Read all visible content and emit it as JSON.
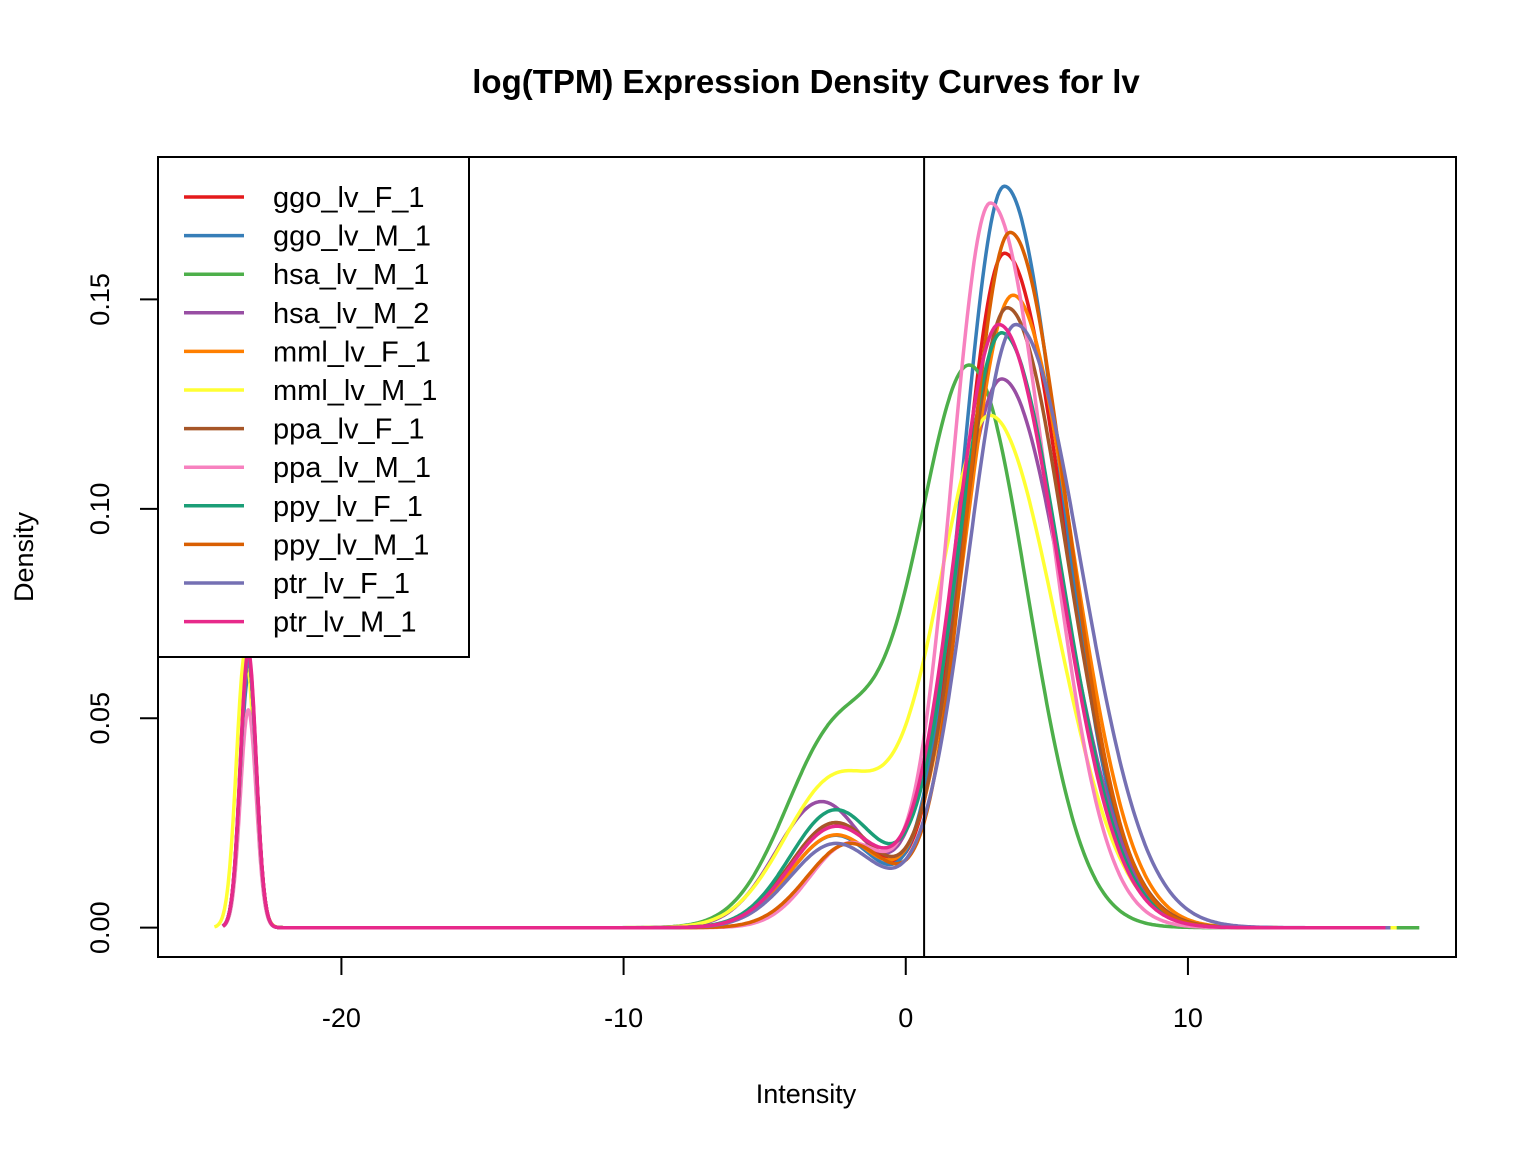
{
  "chart_data": {
    "type": "line",
    "title": "log(TPM) Expression Density Curves for lv",
    "xlabel": "Intensity",
    "ylabel": "Density",
    "xlim": [
      -26.5,
      19.5
    ],
    "ylim": [
      -0.007,
      0.184
    ],
    "x_ticks": [
      -20,
      -10,
      0,
      10
    ],
    "y_ticks": [
      0.0,
      0.05,
      0.1,
      0.15
    ],
    "x_tick_labels": [
      "-20",
      "-10",
      "0",
      "10"
    ],
    "y_tick_labels": [
      "0.00",
      "0.05",
      "0.10",
      "0.15"
    ],
    "vline_x": 0.65,
    "legend_position": "top-left",
    "grid": false,
    "series": [
      {
        "name": "ggo_lv_F_1",
        "color": "#E41A1C",
        "spike": {
          "x": -23.3,
          "y": 0.065,
          "w": 0.28,
          "x0": -24.2,
          "x1": -22.3
        },
        "peak": {
          "x": 3.5,
          "y": 0.161,
          "sl": 1.5,
          "sr": 2.1
        },
        "shoulder": {
          "x": -2.5,
          "y": 0.025,
          "s": 1.6
        },
        "xmax": 17.0
      },
      {
        "name": "ggo_lv_M_1",
        "color": "#377EB8",
        "spike": {
          "x": -23.3,
          "y": 0.06,
          "w": 0.28,
          "x0": -24.2,
          "x1": -22.3
        },
        "peak": {
          "x": 3.5,
          "y": 0.177,
          "sl": 1.5,
          "sr": 2.0
        },
        "shoulder": {
          "x": -2.5,
          "y": 0.022,
          "s": 1.6
        },
        "xmax": 17.0
      },
      {
        "name": "hsa_lv_M_1",
        "color": "#4DAF4A",
        "spike": {
          "x": -23.3,
          "y": 0.064,
          "w": 0.28,
          "x0": -24.2,
          "x1": -22.3
        },
        "peak": {
          "x": 2.3,
          "y": 0.133,
          "sl": 1.9,
          "sr": 2.0
        },
        "shoulder": {
          "x": -2.5,
          "y": 0.045,
          "s": 1.8
        },
        "xmax": 18.2
      },
      {
        "name": "hsa_lv_M_2",
        "color": "#984EA3",
        "spike": {
          "x": -23.3,
          "y": 0.064,
          "w": 0.28,
          "x0": -24.2,
          "x1": -22.3
        },
        "peak": {
          "x": 3.4,
          "y": 0.131,
          "sl": 1.7,
          "sr": 2.2
        },
        "shoulder": {
          "x": -3.0,
          "y": 0.03,
          "s": 1.6
        },
        "xmax": 17.2
      },
      {
        "name": "mml_lv_F_1",
        "color": "#FF7F00",
        "spike": {
          "x": -23.3,
          "y": 0.064,
          "w": 0.28,
          "x0": -24.2,
          "x1": -22.3
        },
        "peak": {
          "x": 3.8,
          "y": 0.151,
          "sl": 1.7,
          "sr": 2.1
        },
        "shoulder": {
          "x": -2.5,
          "y": 0.022,
          "s": 1.6
        },
        "xmax": 17.2
      },
      {
        "name": "mml_lv_M_1",
        "color": "#FFFF33",
        "spike": {
          "x": -23.4,
          "y": 0.066,
          "w": 0.32,
          "x0": -24.5,
          "x1": -22.2
        },
        "peak": {
          "x": 3.0,
          "y": 0.122,
          "sl": 1.9,
          "sr": 2.3
        },
        "shoulder": {
          "x": -2.5,
          "y": 0.035,
          "s": 1.8
        },
        "xmax": 17.4
      },
      {
        "name": "ppa_lv_F_1",
        "color": "#A65628",
        "spike": {
          "x": -23.3,
          "y": 0.064,
          "w": 0.28,
          "x0": -24.2,
          "x1": -22.3
        },
        "peak": {
          "x": 3.6,
          "y": 0.148,
          "sl": 1.6,
          "sr": 2.1
        },
        "shoulder": {
          "x": -2.5,
          "y": 0.025,
          "s": 1.6
        },
        "xmax": 17.0
      },
      {
        "name": "ppa_lv_M_1",
        "color": "#F781BF",
        "spike": {
          "x": -23.3,
          "y": 0.052,
          "w": 0.28,
          "x0": -24.2,
          "x1": -22.3
        },
        "peak": {
          "x": 3.0,
          "y": 0.173,
          "sl": 1.4,
          "sr": 2.0
        },
        "shoulder": {
          "x": -2.0,
          "y": 0.02,
          "s": 1.4
        },
        "xmax": 17.0
      },
      {
        "name": "ppy_lv_F_1",
        "color": "#1B9E77",
        "spike": {
          "x": -23.3,
          "y": 0.064,
          "w": 0.28,
          "x0": -24.2,
          "x1": -22.3
        },
        "peak": {
          "x": 3.4,
          "y": 0.142,
          "sl": 1.6,
          "sr": 2.1
        },
        "shoulder": {
          "x": -2.5,
          "y": 0.028,
          "s": 1.6
        },
        "xmax": 17.0
      },
      {
        "name": "ppy_lv_M_1",
        "color": "#D95F02",
        "spike": {
          "x": -23.3,
          "y": 0.064,
          "w": 0.28,
          "x0": -24.2,
          "x1": -22.3
        },
        "peak": {
          "x": 3.7,
          "y": 0.166,
          "sl": 1.5,
          "sr": 2.0
        },
        "shoulder": {
          "x": -2.0,
          "y": 0.02,
          "s": 1.5
        },
        "xmax": 17.0
      },
      {
        "name": "ptr_lv_F_1",
        "color": "#7570B3",
        "spike": {
          "x": -23.3,
          "y": 0.064,
          "w": 0.28,
          "x0": -24.2,
          "x1": -22.3
        },
        "peak": {
          "x": 3.9,
          "y": 0.144,
          "sl": 1.7,
          "sr": 2.3
        },
        "shoulder": {
          "x": -2.5,
          "y": 0.02,
          "s": 1.6
        },
        "xmax": 17.2
      },
      {
        "name": "ptr_lv_M_1",
        "color": "#E7298A",
        "spike": {
          "x": -23.3,
          "y": 0.066,
          "w": 0.28,
          "x0": -24.2,
          "x1": -22.3
        },
        "peak": {
          "x": 3.3,
          "y": 0.144,
          "sl": 1.6,
          "sr": 2.1
        },
        "shoulder": {
          "x": -2.5,
          "y": 0.024,
          "s": 1.6
        },
        "xmax": 17.0
      }
    ]
  }
}
